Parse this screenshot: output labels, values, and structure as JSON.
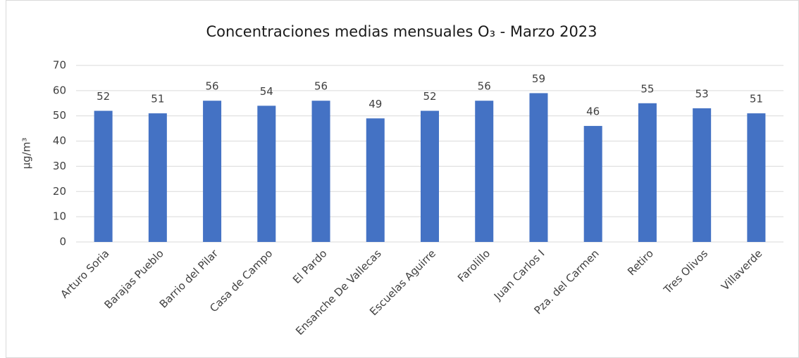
{
  "chart_data": {
    "type": "bar",
    "title": "Concentraciones medias mensuales O₃ - Marzo 2023",
    "y_label": "µg/m³",
    "categories": [
      "Arturo Soria",
      "Barajas Pueblo",
      "Barrio del Pilar",
      "Casa de Campo",
      "El Pardo",
      "Ensanche De Vallecas",
      "Escuelas Aguirre",
      "Farolillo",
      "Juan Carlos I",
      "Pza. del Carmen",
      "Retiro",
      "Tres Olivos",
      "Villaverde"
    ],
    "values": [
      52,
      51,
      56,
      54,
      56,
      49,
      52,
      56,
      59,
      46,
      55,
      53,
      51
    ],
    "color": "#4472c4",
    "ylim": [
      0,
      70
    ],
    "yticks": [
      0,
      10,
      20,
      30,
      40,
      50,
      60,
      70
    ],
    "grid": true
  }
}
